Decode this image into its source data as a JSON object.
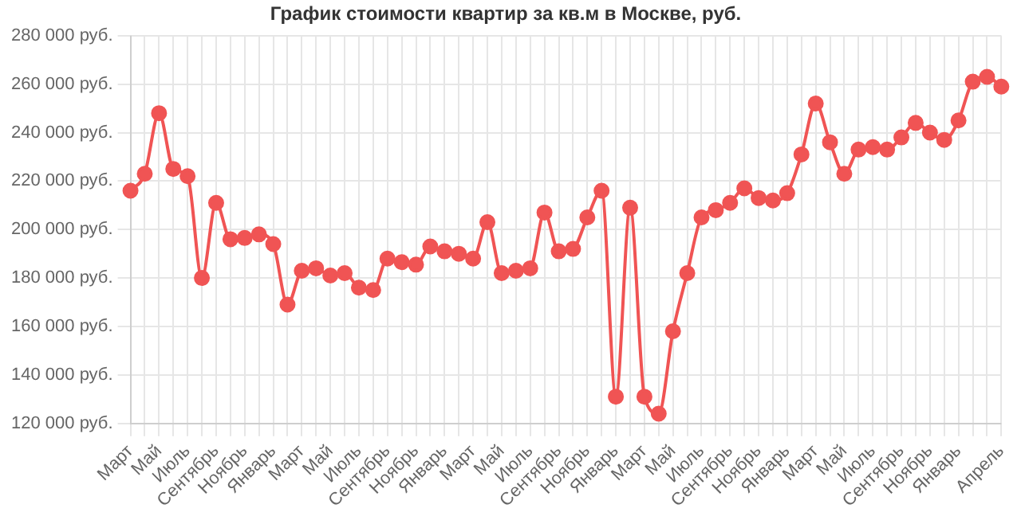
{
  "chart_data": {
    "type": "line",
    "title": "График стоимости квартир за кв.м в Москве, руб.",
    "categories": [
      "Март",
      null,
      "Май",
      null,
      "Июль",
      null,
      "Сентябрь",
      null,
      "Ноябрь",
      null,
      "Январь",
      null,
      "Март",
      null,
      "Май",
      null,
      "Июль",
      null,
      "Сентябрь",
      null,
      "Ноябрь",
      null,
      "Январь",
      null,
      "Март",
      null,
      "Май",
      null,
      "Июль",
      null,
      "Сентябрь",
      null,
      "Ноябрь",
      null,
      "Январь",
      null,
      "Март",
      null,
      "Май",
      null,
      "Июль",
      null,
      "Сентябрь",
      null,
      "Ноябрь",
      null,
      "Январь",
      null,
      "Март",
      null,
      "Май",
      null,
      "Июль",
      null,
      "Сентябрь",
      null,
      "Ноябрь",
      null,
      "Январь",
      null,
      null,
      "Апрель"
    ],
    "series": [
      {
        "color": "#f05454",
        "values": [
          216000,
          223000,
          248000,
          225000,
          222000,
          180000,
          211000,
          196000,
          196500,
          198000,
          194000,
          169000,
          183000,
          184000,
          181000,
          182000,
          176000,
          175000,
          188000,
          186500,
          185500,
          193000,
          191000,
          190000,
          188000,
          203000,
          182000,
          183000,
          184000,
          207000,
          191000,
          192000,
          205000,
          216000,
          131000,
          209000,
          131000,
          124000,
          158000,
          182000,
          205000,
          208000,
          211000,
          217000,
          213000,
          212000,
          215000,
          231000,
          252000,
          236000,
          223000,
          233000,
          234000,
          233000,
          238000,
          244000,
          240000,
          237000,
          245000,
          261000,
          263000,
          259000
        ]
      }
    ],
    "ylim": [
      120000,
      280000
    ],
    "yticks": [
      {
        "value": 120000,
        "label": "120 000 руб."
      },
      {
        "value": 140000,
        "label": "140 000 руб."
      },
      {
        "value": 160000,
        "label": "160 000 руб."
      },
      {
        "value": 180000,
        "label": "180 000 руб."
      },
      {
        "value": 200000,
        "label": "200 000 руб."
      },
      {
        "value": 220000,
        "label": "220 000 руб."
      },
      {
        "value": 240000,
        "label": "240 000 руб."
      },
      {
        "value": 260000,
        "label": "260 000 руб."
      },
      {
        "value": 280000,
        "label": "280 000 руб."
      }
    ],
    "grid": true,
    "marker": "circle",
    "line_style": "solid"
  }
}
